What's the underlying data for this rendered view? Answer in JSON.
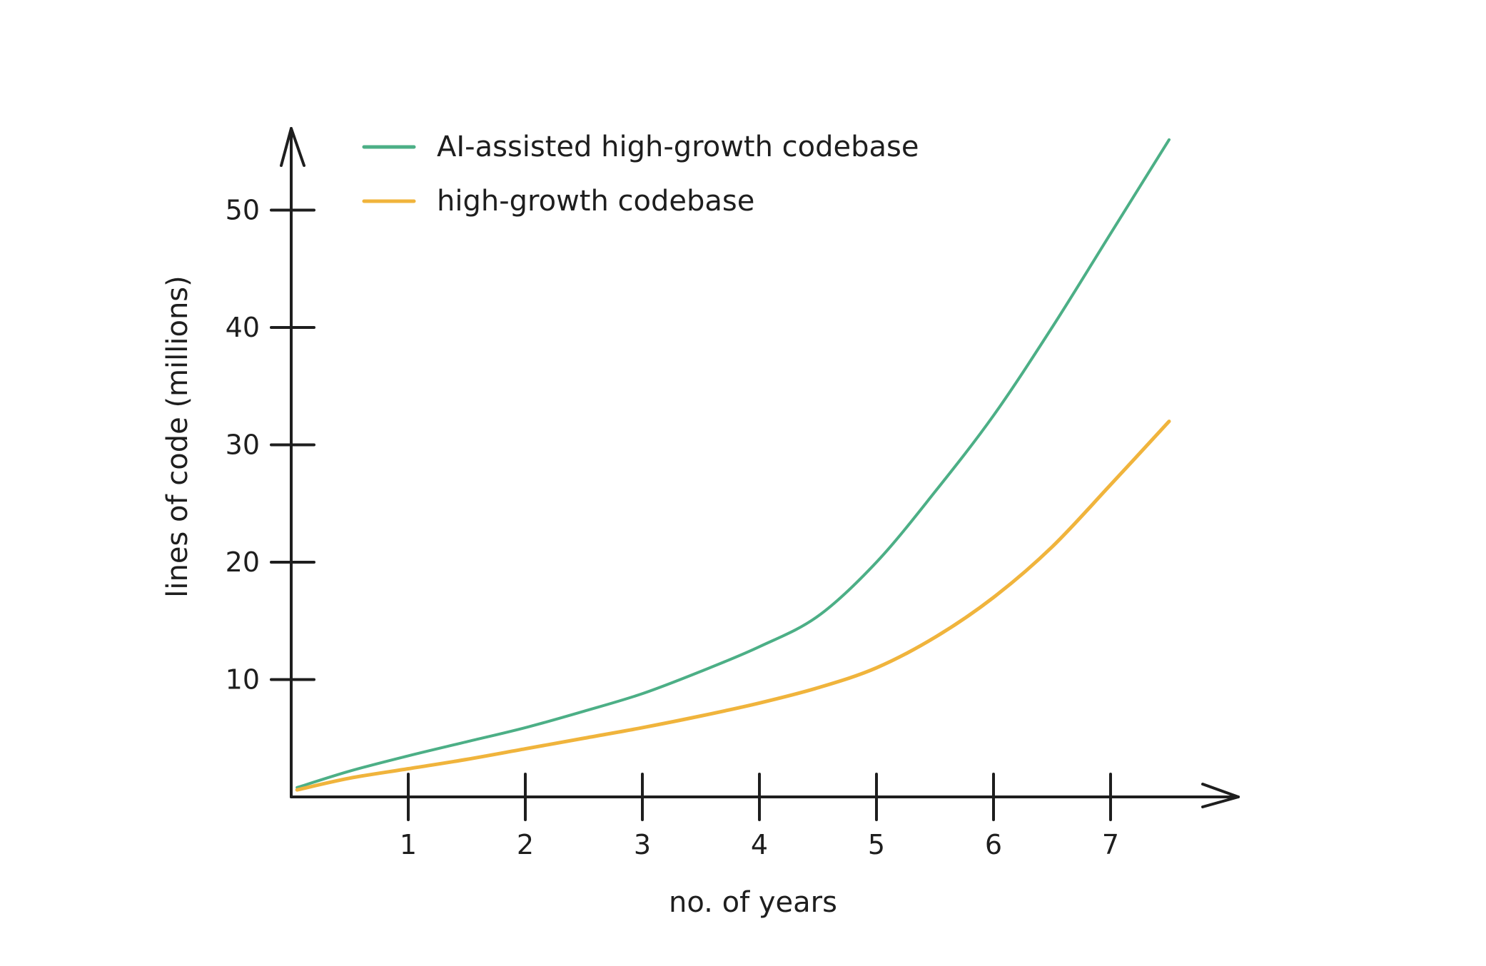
{
  "chart_data": {
    "type": "line",
    "title": "",
    "xlabel": "no. of years",
    "ylabel": "lines of code (millions)",
    "xlim": [
      0,
      8
    ],
    "ylim": [
      0,
      58
    ],
    "xticks": [
      1,
      2,
      3,
      4,
      5,
      6,
      7
    ],
    "yticks": [
      10,
      20,
      30,
      40,
      50
    ],
    "grid": false,
    "legend_position": "top-left",
    "series": [
      {
        "name": "AI-assisted high-growth codebase",
        "color": "#4caf86",
        "x": [
          0.05,
          0.5,
          1,
          1.5,
          2,
          2.5,
          3,
          3.5,
          4,
          4.5,
          5,
          5.5,
          6,
          6.5,
          7,
          7.5
        ],
        "values": [
          0.8,
          2.2,
          3.5,
          4.7,
          5.9,
          7.3,
          8.8,
          10.7,
          12.8,
          15.4,
          20.0,
          26.0,
          32.5,
          40.0,
          48.0,
          56.0
        ]
      },
      {
        "name": "high-growth codebase",
        "color": "#f0b43c",
        "x": [
          0.05,
          0.5,
          1,
          1.5,
          2,
          2.5,
          3,
          3.5,
          4,
          4.5,
          5,
          5.5,
          6,
          6.5,
          7,
          7.5
        ],
        "values": [
          0.6,
          1.6,
          2.4,
          3.2,
          4.1,
          5.0,
          5.9,
          6.9,
          8.0,
          9.3,
          11.0,
          13.6,
          17.0,
          21.3,
          26.6,
          32.0
        ]
      }
    ]
  }
}
